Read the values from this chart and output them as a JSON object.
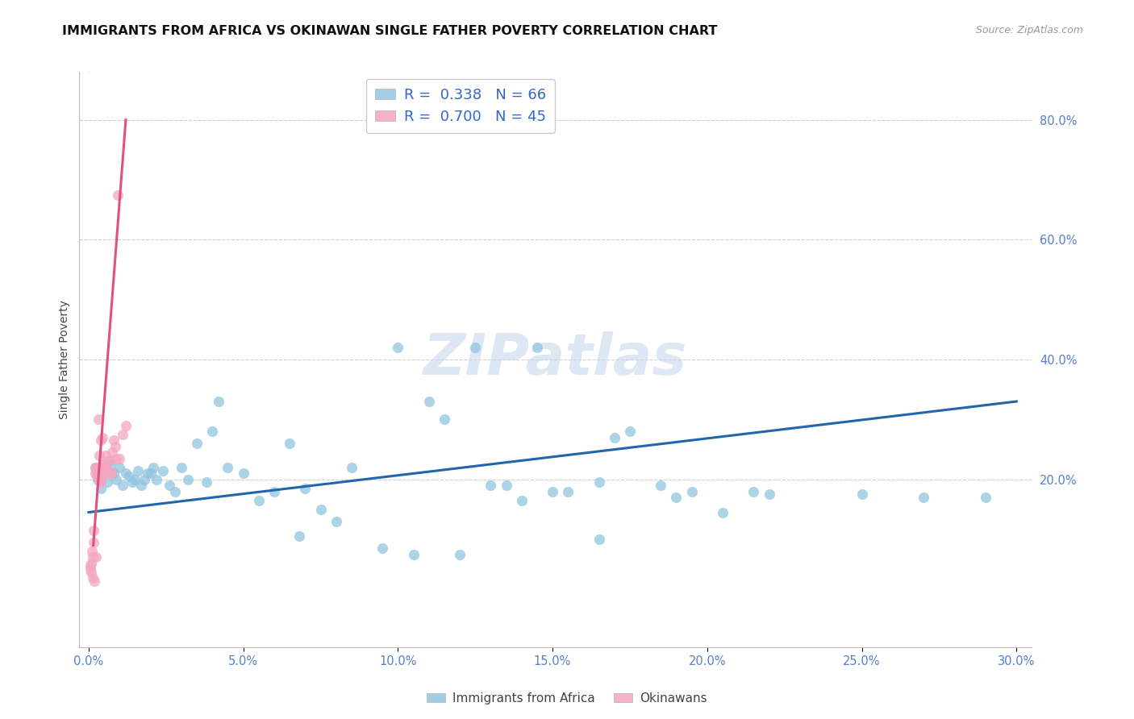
{
  "title": "IMMIGRANTS FROM AFRICA VS OKINAWAN SINGLE FATHER POVERTY CORRELATION CHART",
  "source": "Source: ZipAtlas.com",
  "ylabel": "Single Father Poverty",
  "xlim": [
    -0.3,
    30.5
  ],
  "ylim": [
    -8.0,
    88.0
  ],
  "blue_color": "#92c5de",
  "blue_line_color": "#2166ac",
  "pink_color": "#f4a6c0",
  "pink_line_color": "#e05080",
  "legend_r_blue": "R =  0.338",
  "legend_n_blue": "N = 66",
  "legend_r_pink": "R =  0.700",
  "legend_n_pink": "N = 45",
  "legend_label_blue": "Immigrants from Africa",
  "legend_label_pink": "Okinawans",
  "watermark": "ZIPatlas",
  "blue_x": [
    0.2,
    0.3,
    0.4,
    0.5,
    0.6,
    0.7,
    0.8,
    0.9,
    1.0,
    1.1,
    1.2,
    1.3,
    1.4,
    1.5,
    1.6,
    1.7,
    1.8,
    1.9,
    2.0,
    2.1,
    2.2,
    2.4,
    2.6,
    2.8,
    3.0,
    3.2,
    3.5,
    3.8,
    4.0,
    4.5,
    5.0,
    5.5,
    6.0,
    6.5,
    7.0,
    7.5,
    8.5,
    9.5,
    10.5,
    11.5,
    12.5,
    13.5,
    14.5,
    15.5,
    16.5,
    17.5,
    18.5,
    19.5,
    20.5,
    21.5,
    4.2,
    6.8,
    8.0,
    11.0,
    13.0,
    15.0,
    17.0,
    19.0,
    22.0,
    25.0,
    27.0,
    29.0,
    10.0,
    12.0,
    14.0,
    16.5
  ],
  "blue_y": [
    22.0,
    20.0,
    18.5,
    21.0,
    19.5,
    22.5,
    21.0,
    20.0,
    22.0,
    19.0,
    21.0,
    20.5,
    19.5,
    20.0,
    21.5,
    19.0,
    20.0,
    21.0,
    21.0,
    22.0,
    20.0,
    21.5,
    19.0,
    18.0,
    22.0,
    20.0,
    26.0,
    19.5,
    28.0,
    22.0,
    21.0,
    16.5,
    18.0,
    26.0,
    18.5,
    15.0,
    22.0,
    8.5,
    7.5,
    30.0,
    42.0,
    19.0,
    42.0,
    18.0,
    10.0,
    28.0,
    19.0,
    18.0,
    14.5,
    18.0,
    33.0,
    10.5,
    13.0,
    33.0,
    19.0,
    18.0,
    27.0,
    17.0,
    17.5,
    17.5,
    17.0,
    17.0,
    42.0,
    7.5,
    16.5,
    19.5
  ],
  "pink_x": [
    0.05,
    0.08,
    0.1,
    0.12,
    0.15,
    0.18,
    0.2,
    0.22,
    0.25,
    0.28,
    0.3,
    0.32,
    0.35,
    0.38,
    0.4,
    0.42,
    0.45,
    0.48,
    0.5,
    0.55,
    0.6,
    0.65,
    0.7,
    0.75,
    0.8,
    0.85,
    0.9,
    0.95,
    1.0,
    1.1,
    0.06,
    0.09,
    0.13,
    0.16,
    0.23,
    0.27,
    0.33,
    0.37,
    0.43,
    0.47,
    0.52,
    0.58,
    0.62,
    0.72,
    1.2
  ],
  "pink_y": [
    5.5,
    4.5,
    8.0,
    7.0,
    9.5,
    3.0,
    22.0,
    21.0,
    20.5,
    22.0,
    21.0,
    30.0,
    24.0,
    20.0,
    26.5,
    20.5,
    27.0,
    22.0,
    22.5,
    24.0,
    21.5,
    23.0,
    21.0,
    24.5,
    26.5,
    25.5,
    23.5,
    67.5,
    23.5,
    27.5,
    5.0,
    6.0,
    3.5,
    11.5,
    7.0,
    21.5,
    21.0,
    19.5,
    20.0,
    22.5,
    22.0,
    21.5,
    23.0,
    21.0,
    29.0
  ],
  "blue_trend": [
    0.0,
    30.0,
    14.5,
    33.0
  ],
  "pink_trend_solid": [
    0.15,
    1.2,
    9.0,
    80.0
  ],
  "pink_trend_dash": [
    0.0,
    0.15,
    88.0,
    130.0
  ],
  "grid_color": "#d0d0d0",
  "background_color": "#ffffff",
  "title_fontsize": 11.5,
  "axis_label_fontsize": 10,
  "tick_fontsize": 10.5,
  "watermark_fontsize": 52,
  "watermark_color": "#c8d8ee",
  "watermark_alpha": 0.6
}
